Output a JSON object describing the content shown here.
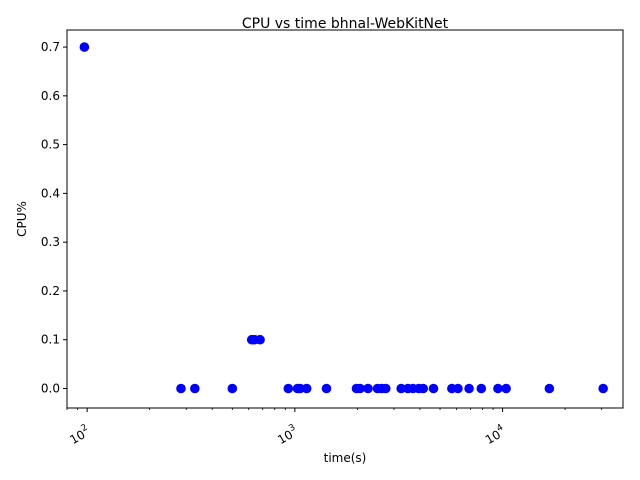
{
  "chart_data": {
    "type": "scatter",
    "title": "CPU vs time bhnal-WebKitNet",
    "xlabel": "time(s)",
    "ylabel": "CPU%",
    "xscale": "log",
    "xlim": [
      80,
      38000
    ],
    "ylim": [
      -0.04,
      0.735
    ],
    "xticks": [
      {
        "value": 100,
        "base": "10",
        "exp": "2"
      },
      {
        "value": 1000,
        "base": "10",
        "exp": "3"
      },
      {
        "value": 10000,
        "base": "10",
        "exp": "4"
      }
    ],
    "yticks": [
      {
        "value": 0.0,
        "label": "0.0"
      },
      {
        "value": 0.1,
        "label": "0.1"
      },
      {
        "value": 0.2,
        "label": "0.2"
      },
      {
        "value": 0.3,
        "label": "0.3"
      },
      {
        "value": 0.4,
        "label": "0.4"
      },
      {
        "value": 0.5,
        "label": "0.5"
      },
      {
        "value": 0.6,
        "label": "0.6"
      },
      {
        "value": 0.7,
        "label": "0.7"
      }
    ],
    "grid": false,
    "marker_color": "#0000ff",
    "points": [
      {
        "x": 97,
        "y": 0.7
      },
      {
        "x": 283,
        "y": 0.0
      },
      {
        "x": 330,
        "y": 0.0
      },
      {
        "x": 500,
        "y": 0.0
      },
      {
        "x": 620,
        "y": 0.1
      },
      {
        "x": 640,
        "y": 0.1
      },
      {
        "x": 680,
        "y": 0.1
      },
      {
        "x": 930,
        "y": 0.0
      },
      {
        "x": 1030,
        "y": 0.0
      },
      {
        "x": 1060,
        "y": 0.0
      },
      {
        "x": 1140,
        "y": 0.0
      },
      {
        "x": 1420,
        "y": 0.0
      },
      {
        "x": 1980,
        "y": 0.0
      },
      {
        "x": 2060,
        "y": 0.0
      },
      {
        "x": 2250,
        "y": 0.0
      },
      {
        "x": 2500,
        "y": 0.0
      },
      {
        "x": 2620,
        "y": 0.0
      },
      {
        "x": 2740,
        "y": 0.0
      },
      {
        "x": 3250,
        "y": 0.0
      },
      {
        "x": 3500,
        "y": 0.0
      },
      {
        "x": 3700,
        "y": 0.0
      },
      {
        "x": 3950,
        "y": 0.0
      },
      {
        "x": 4150,
        "y": 0.0
      },
      {
        "x": 4650,
        "y": 0.0
      },
      {
        "x": 5700,
        "y": 0.0
      },
      {
        "x": 6100,
        "y": 0.0
      },
      {
        "x": 6900,
        "y": 0.0
      },
      {
        "x": 7900,
        "y": 0.0
      },
      {
        "x": 9500,
        "y": 0.0
      },
      {
        "x": 10400,
        "y": 0.0
      },
      {
        "x": 16800,
        "y": 0.0
      },
      {
        "x": 30500,
        "y": 0.0
      }
    ]
  }
}
